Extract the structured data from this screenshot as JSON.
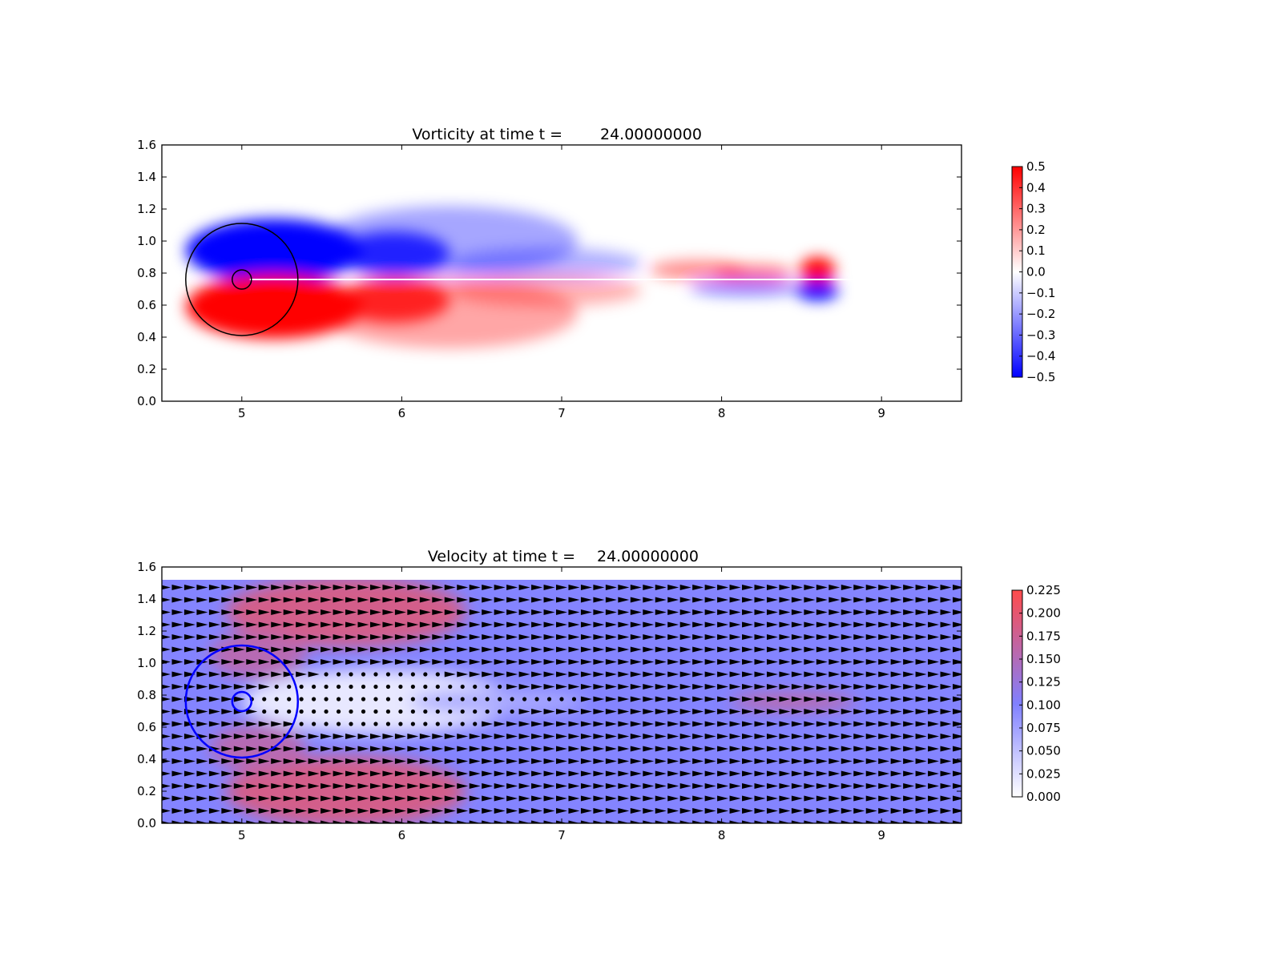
{
  "chart_data": [
    {
      "type": "heatmap",
      "title_prefix": "Vorticity at time t =",
      "time": "24.00000000",
      "xlim": [
        4.5,
        9.5
      ],
      "ylim": [
        0.0,
        1.6
      ],
      "xticks": [
        "5",
        "6",
        "7",
        "8",
        "9"
      ],
      "yticks": [
        "0.0",
        "0.2",
        "0.4",
        "0.6",
        "0.8",
        "1.0",
        "1.2",
        "1.4",
        "1.6"
      ],
      "colormap": "bwr",
      "colors": {
        "low": "#0000ff",
        "mid": "#ffffff",
        "high": "#ff0000"
      },
      "color_range": [
        -0.5,
        0.5
      ],
      "colorbar_ticks": [
        "0.5",
        "0.4",
        "0.3",
        "0.2",
        "0.1",
        "0.0",
        "−0.1",
        "−0.2",
        "−0.3",
        "−0.4",
        "−0.5"
      ],
      "grid": false,
      "annotations": [
        {
          "shape": "circle",
          "center": [
            5.0,
            0.76
          ],
          "radius": 0.35,
          "color": "#000000"
        },
        {
          "shape": "circle",
          "center": [
            5.0,
            0.76
          ],
          "radius": 0.06,
          "color": "#000000"
        }
      ],
      "vortices": [
        {
          "x": 5.2,
          "y": 0.94,
          "rx": 0.55,
          "ry": 0.2,
          "w": -1.0
        },
        {
          "x": 5.95,
          "y": 0.92,
          "rx": 0.35,
          "ry": 0.14,
          "w": -0.8
        },
        {
          "x": 6.3,
          "y": 1.0,
          "rx": 0.8,
          "ry": 0.22,
          "w": -0.35
        },
        {
          "x": 6.9,
          "y": 0.86,
          "rx": 0.6,
          "ry": 0.1,
          "w": -0.3
        },
        {
          "x": 5.2,
          "y": 0.59,
          "rx": 0.55,
          "ry": 0.2,
          "w": 1.0
        },
        {
          "x": 5.95,
          "y": 0.63,
          "rx": 0.35,
          "ry": 0.14,
          "w": 0.8
        },
        {
          "x": 6.3,
          "y": 0.55,
          "rx": 0.8,
          "ry": 0.22,
          "w": 0.35
        },
        {
          "x": 6.9,
          "y": 0.69,
          "rx": 0.6,
          "ry": 0.1,
          "w": 0.3
        },
        {
          "x": 7.85,
          "y": 0.82,
          "rx": 0.3,
          "ry": 0.06,
          "w": 0.45
        },
        {
          "x": 8.2,
          "y": 0.8,
          "rx": 0.25,
          "ry": 0.05,
          "w": 0.55
        },
        {
          "x": 8.6,
          "y": 0.82,
          "rx": 0.11,
          "ry": 0.08,
          "w": 1.0
        },
        {
          "x": 8.15,
          "y": 0.71,
          "rx": 0.35,
          "ry": 0.05,
          "w": -0.5
        },
        {
          "x": 8.6,
          "y": 0.69,
          "rx": 0.13,
          "ry": 0.06,
          "w": -1.0
        }
      ]
    },
    {
      "type": "heatmap",
      "title_prefix": "Velocity at time t =",
      "time": "24.00000000",
      "xlim": [
        4.5,
        9.5
      ],
      "ylim": [
        0.0,
        1.6
      ],
      "xticks": [
        "5",
        "6",
        "7",
        "8",
        "9"
      ],
      "yticks": [
        "0.0",
        "0.2",
        "0.4",
        "0.6",
        "0.8",
        "1.0",
        "1.2",
        "1.4",
        "1.6"
      ],
      "field_extent": {
        "x": [
          4.5,
          9.5
        ],
        "y": [
          0.0,
          1.52
        ]
      },
      "colors": {
        "c0": "#ffffff",
        "c1": "#8080ff",
        "c2": "#ff4b4b"
      },
      "color_range": [
        0.0,
        0.23
      ],
      "colorbar_ticks": [
        "0.225",
        "0.200",
        "0.175",
        "0.150",
        "0.125",
        "0.100",
        "0.075",
        "0.050",
        "0.025",
        "0.000"
      ],
      "background_speed": 0.1,
      "grid": false,
      "annotations": [
        {
          "shape": "circle",
          "center": [
            5.0,
            0.76
          ],
          "radius": 0.35,
          "color": "#0000ff"
        },
        {
          "shape": "circle",
          "center": [
            5.0,
            0.76
          ],
          "radius": 0.06,
          "color": "#0000ff"
        }
      ],
      "speed_features": [
        {
          "x": 5.65,
          "y": 1.32,
          "rx": 0.75,
          "ry": 0.22,
          "d": 0.09
        },
        {
          "x": 5.65,
          "y": 0.2,
          "rx": 0.75,
          "ry": 0.22,
          "d": 0.09
        },
        {
          "x": 5.1,
          "y": 1.05,
          "rx": 0.3,
          "ry": 0.15,
          "d": 0.06
        },
        {
          "x": 5.1,
          "y": 0.47,
          "rx": 0.3,
          "ry": 0.15,
          "d": 0.06
        },
        {
          "x": 5.85,
          "y": 0.76,
          "rx": 0.85,
          "ry": 0.2,
          "d": -0.085
        },
        {
          "x": 6.6,
          "y": 0.76,
          "rx": 0.55,
          "ry": 0.08,
          "d": -0.03
        },
        {
          "x": 8.45,
          "y": 0.76,
          "rx": 0.4,
          "ry": 0.05,
          "d": 0.07
        }
      ],
      "quiver": {
        "dx": 0.0775,
        "dy": 0.0775
      }
    }
  ]
}
